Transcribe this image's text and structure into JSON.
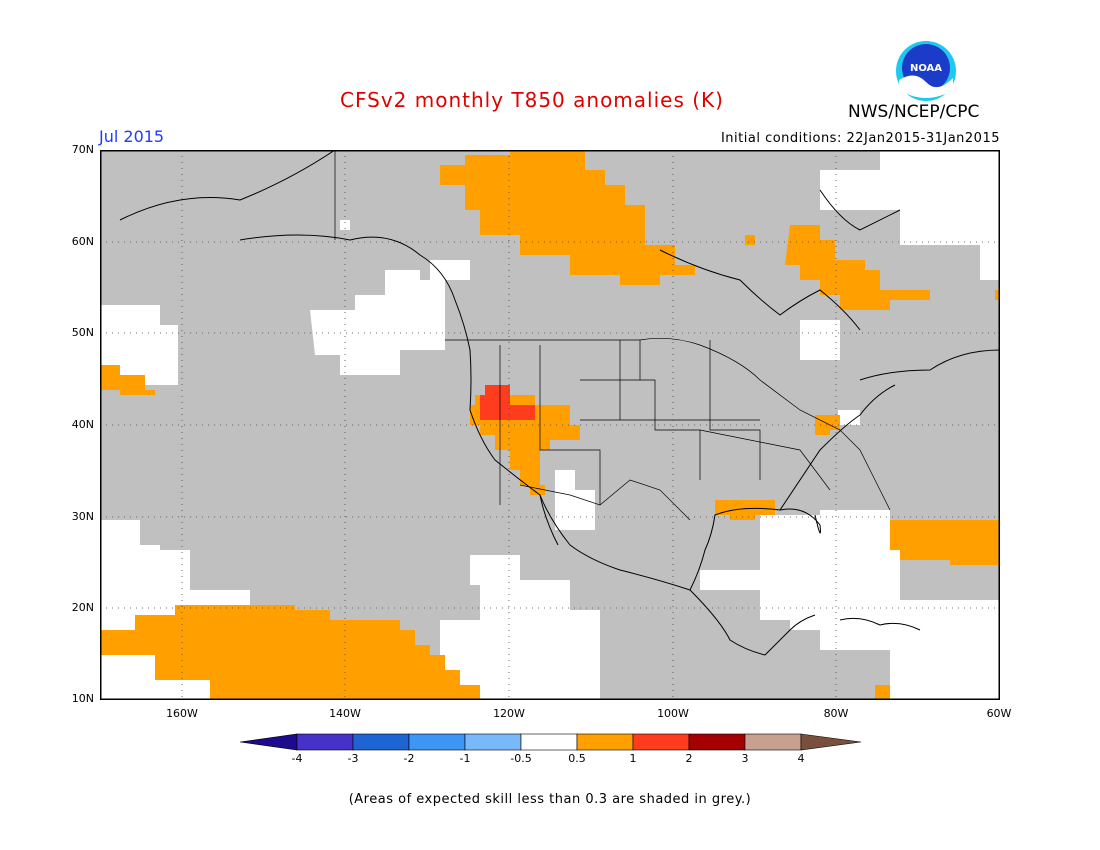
{
  "title": "CFSv2 monthly T850 anomalies (K)",
  "month": "Jul 2015",
  "initial_conditions": "Initial conditions: 22Jan2015-31Jan2015",
  "agency": "NWS/NCEP/CPC",
  "logo_text": "NOAA",
  "footnote": "(Areas of expected skill less than 0.3 are shaded in grey.)",
  "colors": {
    "title": "#e00000",
    "month": "#1e3cff",
    "grey_low_skill": "#c0c0c0",
    "warm_0_5_1": "#ffa000",
    "warm_1_2": "#ff3c1e",
    "warm_2_3": "#a50000",
    "warm_3_4": "#c8a090",
    "warm_gt4": "#78503c",
    "cold_lt_-4": "#1e0a8c",
    "cold_-4_-3": "#4632c8",
    "cold_-3_-2": "#1e64d2",
    "cold_-2_-1": "#3c96f5",
    "cold_-1_-0_5": "#78b9fa",
    "neutral": "#ffffff"
  },
  "axes": {
    "lat_labels": [
      "70N",
      "60N",
      "50N",
      "40N",
      "30N",
      "20N",
      "10N"
    ],
    "lon_labels": [
      "160W",
      "140W",
      "120W",
      "100W",
      "80W",
      "60W"
    ]
  },
  "colorbar": {
    "labels": [
      "-4",
      "-3",
      "-2",
      "-1",
      "-0.5",
      "0.5",
      "1",
      "2",
      "3",
      "4"
    ]
  }
}
